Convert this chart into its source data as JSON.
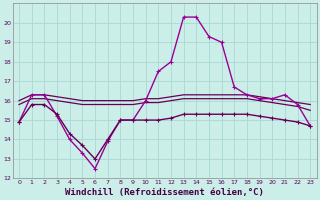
{
  "background_color": "#cceee8",
  "grid_color": "#aad8d4",
  "line_main_color": "#990099",
  "line_flat_color": "#660055",
  "xlabel": "Windchill (Refroidissement éolien,°C)",
  "xlabel_fontsize": 6.5,
  "ylim": [
    12,
    21
  ],
  "yticks": [
    12,
    13,
    14,
    15,
    16,
    17,
    18,
    19,
    20
  ],
  "xlim": [
    -0.5,
    23.5
  ],
  "xticks": [
    0,
    1,
    2,
    3,
    4,
    5,
    6,
    7,
    8,
    9,
    10,
    11,
    12,
    13,
    14,
    15,
    16,
    17,
    18,
    19,
    20,
    21,
    22,
    23
  ],
  "curve1_x": [
    0,
    1,
    2,
    3,
    4,
    5,
    6,
    7,
    8,
    9,
    10,
    11,
    12,
    13,
    14,
    15,
    16,
    17,
    18,
    19,
    20,
    21,
    22,
    23
  ],
  "curve1_y": [
    14.9,
    16.3,
    16.3,
    15.2,
    14.0,
    13.3,
    12.5,
    13.9,
    15.0,
    15.0,
    16.0,
    17.5,
    18.0,
    20.3,
    20.3,
    19.3,
    19.0,
    16.7,
    16.3,
    16.1,
    16.1,
    16.3,
    15.8,
    14.7
  ],
  "curve2_x": [
    0,
    1,
    2,
    3,
    4,
    5,
    6,
    7,
    8,
    9,
    10,
    11,
    12,
    13,
    14,
    15,
    16,
    17,
    18,
    19,
    20,
    21,
    22,
    23
  ],
  "curve2_y": [
    14.9,
    15.8,
    15.8,
    15.3,
    14.3,
    13.7,
    13.0,
    14.0,
    15.0,
    15.0,
    15.0,
    15.0,
    15.1,
    15.3,
    15.3,
    15.3,
    15.3,
    15.3,
    15.3,
    15.2,
    15.1,
    15.0,
    14.9,
    14.7
  ],
  "flat1_x": [
    0,
    1,
    2,
    3,
    4,
    5,
    6,
    7,
    8,
    9,
    10,
    11,
    12,
    13,
    14,
    15,
    16,
    17,
    18,
    19,
    20,
    21,
    22,
    23
  ],
  "flat1_y": [
    16.0,
    16.3,
    16.3,
    16.2,
    16.1,
    16.0,
    16.0,
    16.0,
    16.0,
    16.0,
    16.1,
    16.1,
    16.2,
    16.3,
    16.3,
    16.3,
    16.3,
    16.3,
    16.3,
    16.2,
    16.1,
    16.0,
    15.9,
    15.8
  ],
  "flat2_x": [
    0,
    1,
    2,
    3,
    4,
    5,
    6,
    7,
    8,
    9,
    10,
    11,
    12,
    13,
    14,
    15,
    16,
    17,
    18,
    19,
    20,
    21,
    22,
    23
  ],
  "flat2_y": [
    15.8,
    16.1,
    16.1,
    16.0,
    15.9,
    15.8,
    15.8,
    15.8,
    15.8,
    15.8,
    15.9,
    15.9,
    16.0,
    16.1,
    16.1,
    16.1,
    16.1,
    16.1,
    16.1,
    16.0,
    15.9,
    15.8,
    15.7,
    15.5
  ]
}
